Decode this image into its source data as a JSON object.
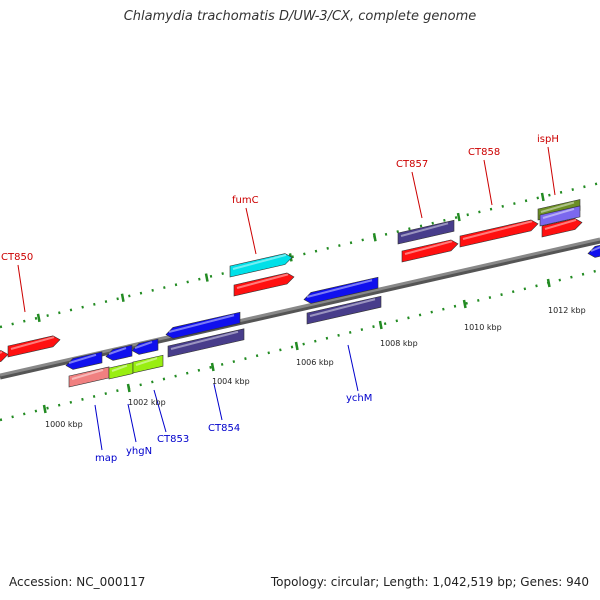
{
  "title": "Chlamydia trachomatis D/UW-3/CX, complete genome",
  "footer": {
    "accession": "Accession: NC_000117",
    "summary": "Topology: circular; Length: 1,042,519 bp; Genes: 940"
  },
  "colors": {
    "backbone": "#888888",
    "tick": "#228b22",
    "forward_label": "#cc0000",
    "reverse_label": "#0000cc",
    "red": "#ff1010",
    "blue": "#1010ee",
    "slate": "#483d8b",
    "cyan": "#00e0e8",
    "pink": "#f08080",
    "lime": "#99ee11",
    "olive": "#6b8e23",
    "lavender": "#7b68ee"
  },
  "axis_labels": [
    "1000 kbp",
    "1002 kbp",
    "1004 kbp",
    "1006 kbp",
    "1008 kbp",
    "1010 kbp",
    "1012 kbp"
  ],
  "gene_labels": {
    "CT850": "CT850",
    "fumC": "fumC",
    "CT857": "CT857",
    "CT858": "CT858",
    "ispH": "ispH",
    "map": "map",
    "yhgN": "yhgN",
    "CT853": "CT853",
    "CT854": "CT854",
    "ychM": "ychM"
  }
}
